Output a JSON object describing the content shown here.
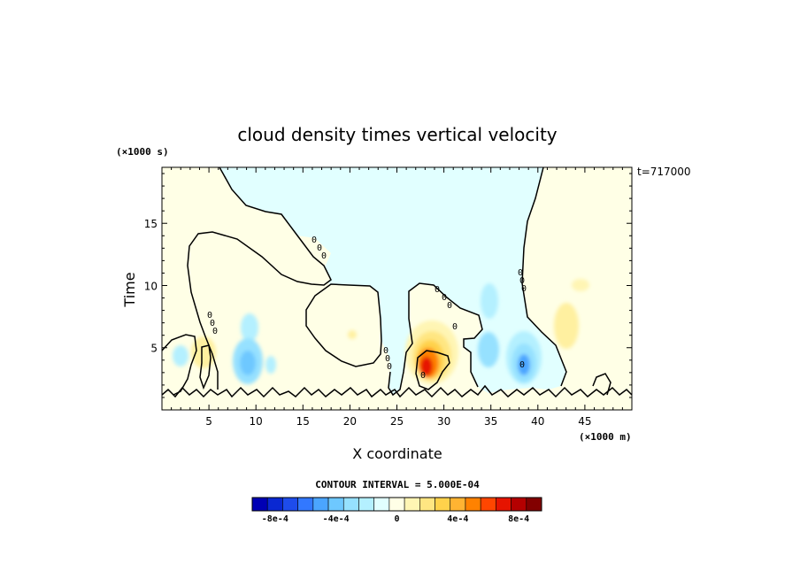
{
  "chart_data": {
    "type": "heatmap",
    "title": "cloud density times vertical velocity",
    "xlabel": "X coordinate",
    "ylabel": "Time",
    "x_unit": "(×1000 m)",
    "y_unit": "(×1000 s)",
    "time_stamp": "t=717000",
    "xlim": [
      0,
      50
    ],
    "ylim": [
      0,
      19.5
    ],
    "x_ticks": [
      "5",
      "10",
      "15",
      "20",
      "25",
      "30",
      "35",
      "40",
      "45"
    ],
    "y_ticks": [
      "5",
      "10",
      "15"
    ],
    "contour_interval_text": "CONTOUR INTERVAL = 5.000E-04",
    "zero_contour_labels": [
      "0",
      "0",
      "0",
      "0",
      "0",
      "0",
      "0",
      "0",
      "0",
      "0",
      "0",
      "0",
      "0",
      "0",
      "0",
      "0",
      "0",
      "0"
    ],
    "colorbar": {
      "colors": [
        "#0000b4",
        "#0a28d2",
        "#1e4ceb",
        "#3278ff",
        "#4ba5ff",
        "#6ec8ff",
        "#96e1ff",
        "#b4f0ff",
        "#e1ffff",
        "#ffffe6",
        "#fff5b4",
        "#ffe682",
        "#ffd24b",
        "#ffb432",
        "#ff8200",
        "#ff4600",
        "#e61400",
        "#b40000",
        "#820000"
      ],
      "tick_labels": [
        "-8e-4",
        "-4e-4",
        "0",
        "4e-4",
        "8e-4"
      ]
    },
    "features": [
      {
        "kind": "positive",
        "x": 28.5,
        "y": 3.5,
        "peak": 0.0009
      },
      {
        "kind": "positive",
        "x": 29.5,
        "y": 5.2,
        "peak": 0.0004
      },
      {
        "kind": "positive",
        "x": 44.0,
        "y": 6.5,
        "peak": 0.0002
      },
      {
        "kind": "positive",
        "x": 4.5,
        "y": 4.8,
        "peak": 0.0002
      },
      {
        "kind": "negative",
        "x": 9.2,
        "y": 4.0,
        "peak": -0.0004
      },
      {
        "kind": "negative",
        "x": 38.3,
        "y": 3.9,
        "peak": -0.0005
      },
      {
        "kind": "negative",
        "x": 34.2,
        "y": 5.2,
        "peak": -0.0002
      },
      {
        "kind": "negative",
        "x": 8.4,
        "y": 7.5,
        "peak": -0.0001
      },
      {
        "kind": "negative",
        "x": 36.2,
        "y": 9.5,
        "peak": -0.0001
      }
    ]
  }
}
